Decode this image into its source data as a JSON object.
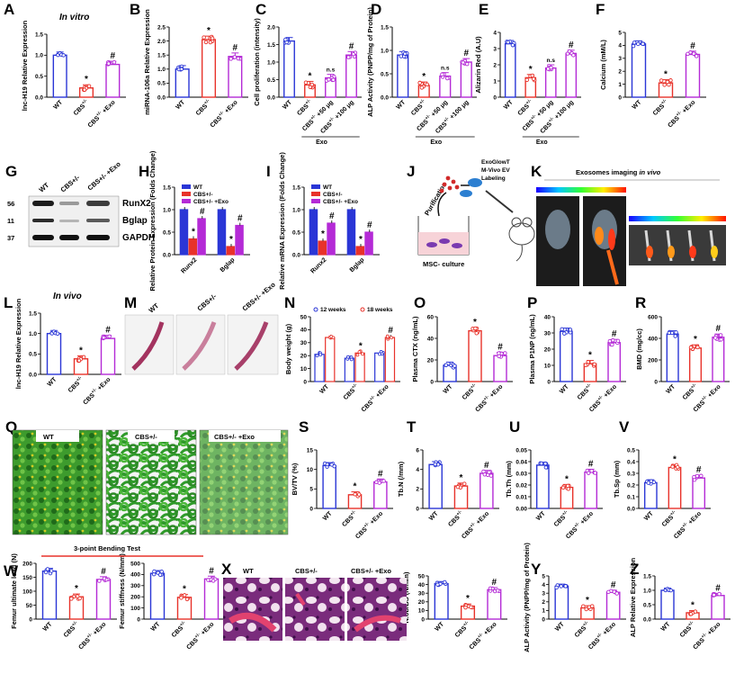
{
  "colors": {
    "blue": "#2a36d6",
    "red": "#e8322a",
    "magenta": "#b42ad6",
    "dark": "#111111"
  },
  "labels": {
    "WT": "WT",
    "CBS": "CBS",
    "sup": "+/-",
    "exo_suffix": "+Exo",
    "exo": "Exo",
    "dose50": "+50 μg",
    "dose100": "+100 μg",
    "ns": "n.s",
    "star": "*",
    "hash": "#"
  },
  "chart_data": [
    {
      "id": "A",
      "type": "bar",
      "letter": "A",
      "title": "In vitro",
      "ylabel": "lnc-H19 Relative Expression",
      "categories": [
        "WT",
        "CBS+/-",
        "CBS+/- +Exo"
      ],
      "values": [
        1.0,
        0.22,
        0.78
      ],
      "ylim": [
        0,
        1.5
      ],
      "yticks": [
        "0.0",
        "0.5",
        "1.0",
        "1.5"
      ],
      "colors": [
        "blue",
        "red",
        "magenta"
      ],
      "marks": [
        "",
        "*",
        "#"
      ]
    },
    {
      "id": "B",
      "type": "bar",
      "letter": "B",
      "ylabel": "miRNA-106a Relative Expression",
      "categories": [
        "WT",
        "CBS+/-",
        "CBS+/- +Exo"
      ],
      "values": [
        1.0,
        2.05,
        1.45
      ],
      "ylim": [
        0,
        2.5
      ],
      "yticks": [
        "0.0",
        "0.5",
        "1.0",
        "1.5",
        "2.0",
        "2.5"
      ],
      "colors": [
        "blue",
        "red",
        "magenta"
      ],
      "marks": [
        "",
        "*",
        "#"
      ]
    },
    {
      "id": "C",
      "type": "bar",
      "letter": "C",
      "ylabel": "Cell proliferation (intensity)",
      "categories": [
        "WT",
        "CBS+/-",
        "CBS+/- +50 μg",
        "CBS+/- +100 μg"
      ],
      "values": [
        1.6,
        0.35,
        0.55,
        1.2
      ],
      "ylim": [
        0,
        2.0
      ],
      "yticks": [
        "0.0",
        "0.5",
        "1.0",
        "1.5",
        "2.0"
      ],
      "colors": [
        "blue",
        "red",
        "magenta",
        "magenta"
      ],
      "marks": [
        "",
        "*",
        "n.s",
        "#"
      ],
      "group": "Exo"
    },
    {
      "id": "D",
      "type": "bar",
      "letter": "D",
      "ylabel": "ALP Activity (PNPP/mg of Protein)",
      "categories": [
        "WT",
        "CBS+/-",
        "CBS+/- +50 μg",
        "CBS+/- +100 μg"
      ],
      "values": [
        0.9,
        0.25,
        0.45,
        0.75
      ],
      "ylim": [
        0,
        1.5
      ],
      "yticks": [
        "0.0",
        "0.5",
        "1.0",
        "1.5"
      ],
      "colors": [
        "blue",
        "red",
        "magenta",
        "magenta"
      ],
      "marks": [
        "",
        "*",
        "n.s",
        "#"
      ],
      "group": "Exo"
    },
    {
      "id": "E",
      "type": "bar",
      "letter": "E",
      "ylabel": "Alizarin Red (A.U)",
      "categories": [
        "WT",
        "CBS+/-",
        "CBS+/- +50 μg",
        "CBS+/- +100 μg"
      ],
      "values": [
        3.3,
        1.2,
        1.8,
        2.7
      ],
      "ylim": [
        0,
        4
      ],
      "yticks": [
        "0",
        "1",
        "2",
        "3",
        "4"
      ],
      "colors": [
        "blue",
        "red",
        "magenta",
        "magenta"
      ],
      "marks": [
        "",
        "*",
        "n.s",
        "#"
      ],
      "group": "Exo"
    },
    {
      "id": "F",
      "type": "bar",
      "letter": "F",
      "ylabel": "Calcium (mM/L)",
      "categories": [
        "WT",
        "CBS+/-",
        "CBS+/- +Exo"
      ],
      "values": [
        4.1,
        1.1,
        3.3
      ],
      "ylim": [
        0,
        5
      ],
      "yticks": [
        "0",
        "1",
        "2",
        "3",
        "4",
        "5"
      ],
      "colors": [
        "blue",
        "red",
        "magenta"
      ],
      "marks": [
        "",
        "*",
        "#"
      ]
    },
    {
      "id": "H",
      "type": "grouped_bar",
      "letter": "H",
      "ylabel": "Relative Protein Expression (Folds Change)",
      "categories": [
        "Runx2",
        "Bglap"
      ],
      "series": [
        {
          "name": "WT",
          "values": [
            1.0,
            1.0
          ]
        },
        {
          "name": "CBS+/-",
          "values": [
            0.35,
            0.18
          ]
        },
        {
          "name": "CBS+/- +Exo",
          "values": [
            0.8,
            0.65
          ]
        }
      ],
      "ylim": [
        0,
        1.5
      ],
      "yticks": [
        "0.0",
        "0.5",
        "1.0",
        "1.5"
      ],
      "marks": [
        [
          "",
          "*",
          "#"
        ],
        [
          "",
          "*",
          "#"
        ]
      ]
    },
    {
      "id": "I",
      "type": "grouped_bar",
      "letter": "I",
      "ylabel": "Relative mRNA Expression (Folds Change)",
      "categories": [
        "Runx2",
        "Bglap"
      ],
      "series": [
        {
          "name": "WT",
          "values": [
            1.0,
            1.0
          ]
        },
        {
          "name": "CBS+/-",
          "values": [
            0.3,
            0.18
          ]
        },
        {
          "name": "CBS+/- +Exo",
          "values": [
            0.7,
            0.5
          ]
        }
      ],
      "ylim": [
        0,
        1.5
      ],
      "yticks": [
        "0.0",
        "0.5",
        "1.0",
        "1.5"
      ],
      "marks": [
        [
          "",
          "*",
          "#"
        ],
        [
          "",
          "*",
          "#"
        ]
      ]
    },
    {
      "id": "L",
      "type": "bar",
      "letter": "L",
      "title": "In vivo",
      "ylabel": "lnc-H19 Relative Expression",
      "categories": [
        "WT",
        "CBS+/-",
        "CBS+/- +Exo"
      ],
      "values": [
        1.0,
        0.38,
        0.88
      ],
      "ylim": [
        0,
        1.5
      ],
      "yticks": [
        "0.0",
        "0.5",
        "1.0",
        "1.5"
      ],
      "colors": [
        "blue",
        "red",
        "magenta"
      ],
      "marks": [
        "",
        "*",
        "#"
      ]
    },
    {
      "id": "N",
      "type": "grouped_bar",
      "letter": "N",
      "ylabel": "Body weight (g)",
      "categories": [
        "WT",
        "CBS+/-",
        "CBS+/- +Exo"
      ],
      "series": [
        {
          "name": "12 weeks",
          "values": [
            21,
            18,
            22
          ]
        },
        {
          "name": "18 weeks",
          "values": [
            34,
            22,
            34
          ]
        }
      ],
      "ylim": [
        0,
        50
      ],
      "yticks": [
        "0",
        "10",
        "20",
        "30",
        "40",
        "50"
      ],
      "marks": [
        [
          "",
          ""
        ],
        [
          "",
          "*"
        ],
        [
          "",
          "#"
        ]
      ]
    },
    {
      "id": "O",
      "type": "bar",
      "letter": "O",
      "ylabel": "Plasma CTX (ng/mL)",
      "categories": [
        "WT",
        "CBS+/-",
        "CBS+/- +Exo"
      ],
      "values": [
        15,
        47,
        24
      ],
      "ylim": [
        0,
        60
      ],
      "yticks": [
        "0",
        "20",
        "40",
        "60"
      ],
      "colors": [
        "blue",
        "red",
        "magenta"
      ],
      "marks": [
        "",
        "*",
        "#"
      ]
    },
    {
      "id": "P",
      "type": "bar",
      "letter": "P",
      "ylabel": "Plasma P1NP (ng/mL)",
      "categories": [
        "WT",
        "CBS+/-",
        "CBS+/- +Exo"
      ],
      "values": [
        31,
        11,
        24
      ],
      "ylim": [
        0,
        40
      ],
      "yticks": [
        "0",
        "10",
        "20",
        "30",
        "40"
      ],
      "colors": [
        "blue",
        "red",
        "magenta"
      ],
      "marks": [
        "",
        "*",
        "#"
      ]
    },
    {
      "id": "R",
      "type": "bar",
      "letter": "R",
      "ylabel": "BMD (mg/cc)",
      "categories": [
        "WT",
        "CBS+/-",
        "CBS+/- +Exo"
      ],
      "values": [
        440,
        310,
        410
      ],
      "ylim": [
        0,
        600
      ],
      "yticks": [
        "0",
        "200",
        "400",
        "600"
      ],
      "colors": [
        "blue",
        "red",
        "magenta"
      ],
      "marks": [
        "",
        "*",
        "#"
      ]
    },
    {
      "id": "S",
      "type": "bar",
      "letter": "S",
      "ylabel": "BV/TV (%)",
      "categories": [
        "WT",
        "CBS+/-",
        "CBS+/- +Exo"
      ],
      "values": [
        11,
        3.5,
        6.8
      ],
      "ylim": [
        0,
        15
      ],
      "yticks": [
        "0",
        "5",
        "10",
        "15"
      ],
      "colors": [
        "blue",
        "red",
        "magenta"
      ],
      "marks": [
        "",
        "*",
        "#"
      ]
    },
    {
      "id": "T",
      "type": "bar",
      "letter": "T",
      "ylabel": "Tb.N (/mm)",
      "categories": [
        "WT",
        "CBS+/-",
        "CBS+/- +Exo"
      ],
      "values": [
        4.5,
        2.3,
        3.6
      ],
      "ylim": [
        0,
        6
      ],
      "yticks": [
        "0",
        "2",
        "4",
        "6"
      ],
      "colors": [
        "blue",
        "red",
        "magenta"
      ],
      "marks": [
        "",
        "*",
        "#"
      ]
    },
    {
      "id": "U",
      "type": "bar",
      "letter": "U",
      "ylabel": "Tb.Th (mm)",
      "categories": [
        "WT",
        "CBS+/-",
        "CBS+/- +Exo"
      ],
      "values": [
        0.037,
        0.018,
        0.031
      ],
      "ylim": [
        0,
        0.05
      ],
      "yticks": [
        "0.00",
        "0.01",
        "0.02",
        "0.03",
        "0.04",
        "0.05"
      ],
      "colors": [
        "blue",
        "red",
        "magenta"
      ],
      "marks": [
        "",
        "*",
        "#"
      ]
    },
    {
      "id": "V",
      "type": "bar",
      "letter": "V",
      "ylabel": "Tb.Sp (mm)",
      "categories": [
        "WT",
        "CBS+/-",
        "CBS+/- +Exo"
      ],
      "values": [
        0.22,
        0.35,
        0.26
      ],
      "ylim": [
        0,
        0.5
      ],
      "yticks": [
        "0.0",
        "0.1",
        "0.2",
        "0.3",
        "0.4",
        "0.5"
      ],
      "colors": [
        "blue",
        "red",
        "magenta"
      ],
      "marks": [
        "",
        "*",
        "#"
      ]
    },
    {
      "id": "W1",
      "type": "bar",
      "letter": "W",
      "ylabel": "Femur ultimate load (N)",
      "categories": [
        "WT",
        "CBS+/-",
        "CBS+/- +Exo"
      ],
      "values": [
        172,
        80,
        142
      ],
      "ylim": [
        0,
        200
      ],
      "yticks": [
        "0",
        "50",
        "100",
        "150",
        "200"
      ],
      "colors": [
        "blue",
        "red",
        "magenta"
      ],
      "marks": [
        "",
        "*",
        "#"
      ]
    },
    {
      "id": "W2",
      "type": "bar",
      "letter": "",
      "ylabel": "Femur stiffness (N/mm)",
      "categories": [
        "WT",
        "CBS+/-",
        "CBS+/- +Exo"
      ],
      "values": [
        410,
        195,
        360
      ],
      "ylim": [
        0,
        500
      ],
      "yticks": [
        "0",
        "100",
        "200",
        "300",
        "400",
        "500"
      ],
      "colors": [
        "blue",
        "red",
        "magenta"
      ],
      "marks": [
        "",
        "*",
        "#"
      ]
    },
    {
      "id": "X2",
      "type": "bar",
      "letter": "",
      "ylabel": "N.ob/BS (N/mm)",
      "categories": [
        "WT",
        "CBS+/-",
        "CBS+/- +Exo"
      ],
      "values": [
        41,
        15,
        34
      ],
      "ylim": [
        0,
        50
      ],
      "yticks": [
        "0",
        "10",
        "20",
        "30",
        "40",
        "50"
      ],
      "colors": [
        "blue",
        "red",
        "magenta"
      ],
      "marks": [
        "",
        "*",
        "#"
      ]
    },
    {
      "id": "Y",
      "type": "bar",
      "letter": "Y",
      "ylabel": "ALP Activity (PNPP/mg of Protein)",
      "categories": [
        "WT",
        "CBS+/-",
        "CBS+/- +Exo"
      ],
      "values": [
        3.8,
        1.3,
        3.1
      ],
      "ylim": [
        0,
        5
      ],
      "yticks": [
        "0",
        "1",
        "2",
        "3",
        "4",
        "5"
      ],
      "colors": [
        "blue",
        "red",
        "magenta"
      ],
      "marks": [
        "",
        "*",
        "#"
      ]
    },
    {
      "id": "Z",
      "type": "bar",
      "letter": "Z",
      "ylabel": "ALP Relative Expression",
      "categories": [
        "WT",
        "CBS+/-",
        "CBS+/- +Exo"
      ],
      "values": [
        1.0,
        0.22,
        0.82
      ],
      "ylim": [
        0,
        1.5
      ],
      "yticks": [
        "0.0",
        "0.5",
        "1.0",
        "1.5"
      ],
      "colors": [
        "blue",
        "red",
        "magenta"
      ],
      "marks": [
        "",
        "*",
        "#"
      ]
    }
  ],
  "panelG": {
    "letter": "G",
    "lanes": [
      "WT",
      "CBS+/-",
      "CBS+/- +Exo"
    ],
    "markers": [
      "56",
      "11",
      "37"
    ],
    "bands": [
      "RunX2",
      "Bglap",
      "GAPDH"
    ]
  },
  "panelJ": {
    "letter": "J",
    "purification": "Purification",
    "culture": "MSC- culture",
    "label_lines": [
      "ExoGlowT",
      "M-Vivo EV",
      "Labeling"
    ]
  },
  "panelK": {
    "letter": "K",
    "title": "Exosomes imaging",
    "title_em": "in vivo"
  },
  "panelM": {
    "letter": "M",
    "groups": [
      "WT",
      "CBS+/-",
      "CBS+/- +Exo"
    ]
  },
  "panelQ": {
    "letter": "Q",
    "groups": [
      "WT",
      "CBS+/-",
      "CBS+/- +Exo"
    ]
  },
  "panelW": {
    "heading": "3-point Bending Test"
  },
  "panelX": {
    "letter": "X",
    "groups": [
      "WT",
      "CBS+/-",
      "CBS+/- +Exo"
    ]
  }
}
